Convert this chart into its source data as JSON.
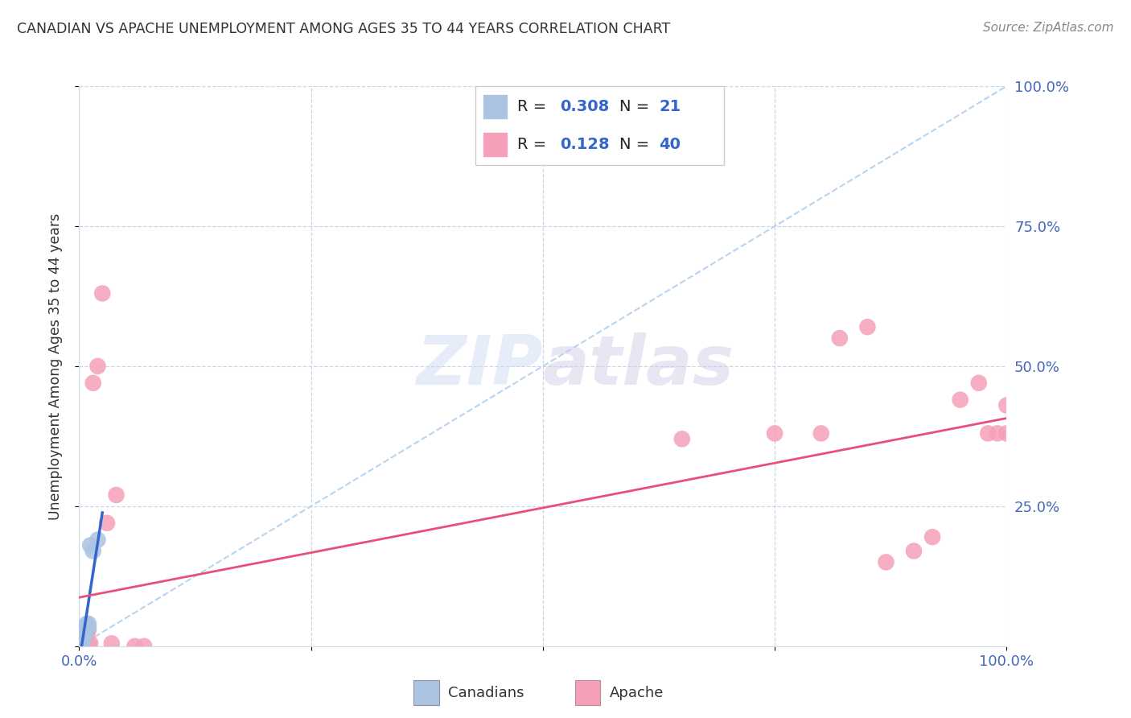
{
  "title": "CANADIAN VS APACHE UNEMPLOYMENT AMONG AGES 35 TO 44 YEARS CORRELATION CHART",
  "source": "Source: ZipAtlas.com",
  "ylabel": "Unemployment Among Ages 35 to 44 years",
  "canadians_R": "0.308",
  "canadians_N": "21",
  "apache_R": "0.128",
  "apache_N": "40",
  "canadian_color": "#aac4e2",
  "apache_color": "#f5a0b8",
  "canadian_line_color": "#3366cc",
  "apache_line_color": "#e8507a",
  "diag_line_color": "#b8d4ee",
  "canadians_x": [
    0.001,
    0.001,
    0.002,
    0.002,
    0.003,
    0.003,
    0.004,
    0.004,
    0.005,
    0.005,
    0.006,
    0.006,
    0.007,
    0.008,
    0.008,
    0.009,
    0.01,
    0.01,
    0.012,
    0.015,
    0.02
  ],
  "canadians_y": [
    0.0,
    0.005,
    0.005,
    0.01,
    0.01,
    0.015,
    0.01,
    0.02,
    0.02,
    0.025,
    0.02,
    0.025,
    0.03,
    0.03,
    0.04,
    0.035,
    0.035,
    0.04,
    0.18,
    0.17,
    0.19
  ],
  "apache_x": [
    0.0,
    0.001,
    0.001,
    0.002,
    0.002,
    0.003,
    0.003,
    0.004,
    0.004,
    0.005,
    0.005,
    0.006,
    0.007,
    0.008,
    0.009,
    0.01,
    0.01,
    0.012,
    0.015,
    0.02,
    0.025,
    0.03,
    0.035,
    0.04,
    0.06,
    0.07,
    0.65,
    0.75,
    0.8,
    0.82,
    0.85,
    0.87,
    0.9,
    0.92,
    0.95,
    0.97,
    0.98,
    0.99,
    1.0,
    1.0
  ],
  "apache_y": [
    0.0,
    0.005,
    0.01,
    0.0,
    0.02,
    0.02,
    0.025,
    0.005,
    0.02,
    0.01,
    0.015,
    0.005,
    0.02,
    0.03,
    0.025,
    0.005,
    0.03,
    0.005,
    0.47,
    0.5,
    0.63,
    0.22,
    0.005,
    0.27,
    0.0,
    0.0,
    0.37,
    0.38,
    0.38,
    0.55,
    0.57,
    0.15,
    0.17,
    0.195,
    0.44,
    0.47,
    0.38,
    0.38,
    0.38,
    0.43
  ],
  "xlim": [
    0.0,
    1.0
  ],
  "ylim": [
    0.0,
    1.0
  ],
  "xticks": [
    0.0,
    0.25,
    0.5,
    0.75,
    1.0
  ],
  "yticks": [
    0.0,
    0.25,
    0.5,
    0.75,
    1.0
  ],
  "xtick_labels": [
    "0.0%",
    "",
    "",
    "",
    "100.0%"
  ],
  "ytick_labels_left": [
    "",
    "",
    "",
    "",
    ""
  ],
  "ytick_labels_right": [
    "",
    "25.0%",
    "50.0%",
    "75.0%",
    "100.0%"
  ],
  "watermark": "ZIPatlas",
  "background_color": "#ffffff",
  "grid_color": "#c8d8ea"
}
